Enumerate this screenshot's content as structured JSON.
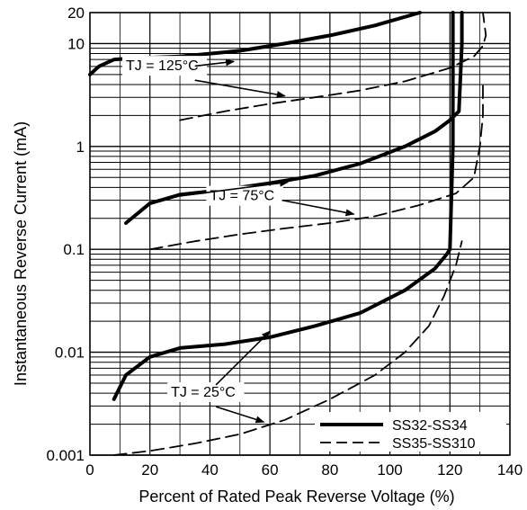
{
  "chart_data": {
    "type": "line",
    "xlabel": "Percent of Rated Peak Reverse Voltage (%)",
    "ylabel": "Instantaneous  Reverse Current (mA)",
    "x_scale": "linear",
    "y_scale": "log",
    "xlim": [
      0,
      140
    ],
    "ylim": [
      0.001,
      20
    ],
    "x_ticks": [
      0,
      20,
      40,
      60,
      80,
      100,
      120,
      140
    ],
    "y_ticks": [
      {
        "value": 0.001,
        "label": "0.001"
      },
      {
        "value": 0.01,
        "label": "0.01"
      },
      {
        "value": 0.1,
        "label": "0.1"
      },
      {
        "value": 1,
        "label": "1"
      },
      {
        "value": 10,
        "label": "10"
      },
      {
        "value": 20,
        "label": "20"
      }
    ],
    "grid": true,
    "legend_position": "bottom-right",
    "legend": [
      {
        "label": "SS32-SS34",
        "style": "solid"
      },
      {
        "label": "SS35-SS310",
        "style": "dashed"
      }
    ],
    "annotations": [
      {
        "text": "TJ = 125°C",
        "x": 12,
        "y": 5.5
      },
      {
        "text": "TJ = 75°C",
        "x": 40,
        "y": 0.3
      },
      {
        "text": "TJ = 25°C",
        "x": 27,
        "y": 0.0037
      }
    ],
    "series": [
      {
        "temperature": "TJ = 125°C",
        "style": "solid",
        "x": [
          0,
          3,
          8,
          15,
          30,
          50,
          65,
          80,
          95,
          110
        ],
        "y": [
          5,
          6,
          7,
          7.2,
          7.5,
          8.5,
          10,
          12,
          15,
          20
        ]
      },
      {
        "temperature": "TJ = 125°C",
        "style": "dashed",
        "x": [
          30,
          45,
          60,
          75,
          90,
          105,
          120,
          128,
          131,
          132,
          131
        ],
        "y": [
          1.8,
          2.2,
          2.6,
          3.0,
          3.5,
          4.3,
          5.8,
          7.5,
          9.5,
          12,
          20
        ]
      },
      {
        "temperature": "TJ = 75°C",
        "style": "solid",
        "x": [
          12,
          20,
          30,
          45,
          60,
          75,
          90,
          105,
          115,
          120,
          123,
          124,
          124
        ],
        "y": [
          0.18,
          0.28,
          0.34,
          0.38,
          0.44,
          0.52,
          0.68,
          1.0,
          1.4,
          1.8,
          2.2,
          10,
          20
        ]
      },
      {
        "temperature": "TJ = 75°C",
        "style": "dashed",
        "x": [
          20,
          35,
          50,
          65,
          80,
          95,
          110,
          122,
          128,
          130,
          131,
          131
        ],
        "y": [
          0.1,
          0.12,
          0.14,
          0.16,
          0.18,
          0.21,
          0.27,
          0.35,
          0.5,
          1.0,
          2.0,
          4.0
        ]
      },
      {
        "temperature": "TJ = 25°C",
        "style": "solid",
        "x": [
          8,
          12,
          20,
          30,
          45,
          60,
          75,
          90,
          105,
          115,
          119,
          120,
          121,
          121
        ],
        "y": [
          0.0035,
          0.006,
          0.009,
          0.011,
          0.012,
          0.014,
          0.018,
          0.024,
          0.04,
          0.065,
          0.09,
          0.1,
          1,
          20
        ]
      },
      {
        "temperature": "TJ = 25°C",
        "style": "dashed",
        "x": [
          8,
          20,
          35,
          50,
          65,
          80,
          95,
          105,
          113,
          118,
          122,
          124
        ],
        "y": [
          0.001,
          0.0011,
          0.0013,
          0.0016,
          0.0022,
          0.0035,
          0.006,
          0.01,
          0.018,
          0.035,
          0.07,
          0.12
        ]
      }
    ]
  }
}
